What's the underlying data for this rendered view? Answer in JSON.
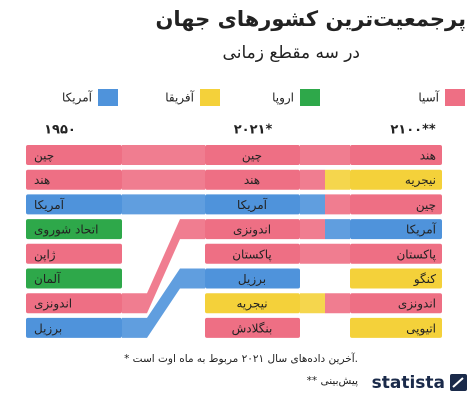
{
  "chart_data": {
    "type": "bump",
    "title": "پرجمعیت‌ترین کشورهای جهان",
    "subtitle": "در سه مقطع زمانی",
    "regions": [
      {
        "name": "آسیا",
        "color": "#ee6f84"
      },
      {
        "name": "اروپا",
        "color": "#2ea84a"
      },
      {
        "name": "آفریقا",
        "color": "#f4d13a"
      },
      {
        "name": "آمریکا",
        "color": "#4f93db"
      }
    ],
    "columns": [
      {
        "label": "۱۹۵۰",
        "items": [
          {
            "name": "چین",
            "region": "آسیا"
          },
          {
            "name": "هند",
            "region": "آسیا"
          },
          {
            "name": "آمریکا",
            "region": "آمریکا"
          },
          {
            "name": "اتحاد شوروی",
            "region": "اروپا"
          },
          {
            "name": "ژاپن",
            "region": "آسیا"
          },
          {
            "name": "آلمان",
            "region": "اروپا"
          },
          {
            "name": "اندونزی",
            "region": "آسیا"
          },
          {
            "name": "برزیل",
            "region": "آمریکا"
          }
        ]
      },
      {
        "label": "۲۰۲۱*",
        "items": [
          {
            "name": "چین",
            "region": "آسیا"
          },
          {
            "name": "هند",
            "region": "آسیا"
          },
          {
            "name": "آمریکا",
            "region": "آمریکا"
          },
          {
            "name": "اندونزی",
            "region": "آسیا"
          },
          {
            "name": "پاکستان",
            "region": "آسیا"
          },
          {
            "name": "برزیل",
            "region": "آمریکا"
          },
          {
            "name": "نیجریه",
            "region": "آفریقا"
          },
          {
            "name": "بنگلادش",
            "region": "آسیا"
          }
        ]
      },
      {
        "label": "۲۱۰۰**",
        "items": [
          {
            "name": "هند",
            "region": "آسیا"
          },
          {
            "name": "نیجریه",
            "region": "آفریقا"
          },
          {
            "name": "چین",
            "region": "آسیا"
          },
          {
            "name": "آمریکا",
            "region": "آمریکا"
          },
          {
            "name": "پاکستان",
            "region": "آسیا"
          },
          {
            "name": "کنگو",
            "region": "آفریقا"
          },
          {
            "name": "اندونزی",
            "region": "آسیا"
          },
          {
            "name": "اتیوپی",
            "region": "آفریقا"
          }
        ]
      }
    ],
    "notes": [
      "* آخرین داده‌های سال ۲۰۲۱ مربوط به ماه اوت است.",
      "** پیش‌بینی"
    ],
    "source": "statista"
  }
}
